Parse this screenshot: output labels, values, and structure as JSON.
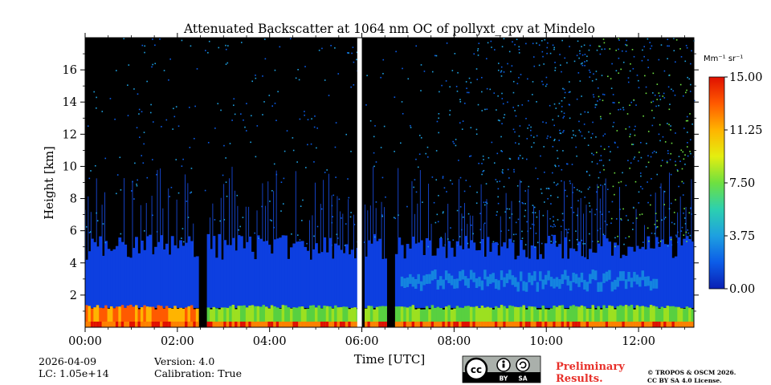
{
  "chart_data": {
    "type": "heatmap",
    "title": "Attenuated Backscatter at 1064 nm OC of pollyxt_cpv at Mindelo",
    "xlabel": "Time [UTC]",
    "ylabel": "Height [km]",
    "xlim": [
      0,
      13.2
    ],
    "ylim": [
      0,
      18
    ],
    "x_ticks": [
      "00:00",
      "02:00",
      "04:00",
      "06:00",
      "08:00",
      "10:00",
      "12:00"
    ],
    "x_tick_values": [
      0,
      2,
      4,
      6,
      8,
      10,
      12
    ],
    "y_ticks": [
      "2",
      "4",
      "6",
      "8",
      "10",
      "12",
      "14",
      "16"
    ],
    "y_tick_values": [
      2,
      4,
      6,
      8,
      10,
      12,
      14,
      16
    ],
    "colorbar": {
      "label": "Mm⁻¹ sr⁻¹",
      "ticks": [
        "0.00",
        "3.75",
        "7.50",
        "11.25",
        "15.00"
      ],
      "tick_values": [
        0,
        3.75,
        7.5,
        11.25,
        15
      ],
      "range": [
        0,
        15
      ],
      "colors": [
        "#0a1fb4",
        "#0c5de8",
        "#1ea0e0",
        "#2cd0b0",
        "#6ee040",
        "#e4ee10",
        "#ffb400",
        "#ff5a00",
        "#e01000"
      ]
    },
    "data_gaps_hours": [
      [
        2.42,
        2.58
      ],
      [
        6.5,
        6.68
      ]
    ],
    "missing_hours": [
      [
        5.9,
        6.0
      ]
    ],
    "aerosol_layer_top_km": 5.0,
    "boundary_layer_top_km": 1.2
  },
  "footer": {
    "date": "2026-04-09",
    "lc": "LC: 1.05e+14",
    "version": "Version: 4.0",
    "calibration": "Calibration: True",
    "preliminary_line1": "Preliminary",
    "preliminary_line2": "Results.",
    "copyright_line1": "© TROPOS & OSCM 2026.",
    "copyright_line2": "CC BY SA 4.0 License.",
    "cc_by": "BY",
    "cc_sa": "SA",
    "preliminary_color": "#e8302a"
  }
}
